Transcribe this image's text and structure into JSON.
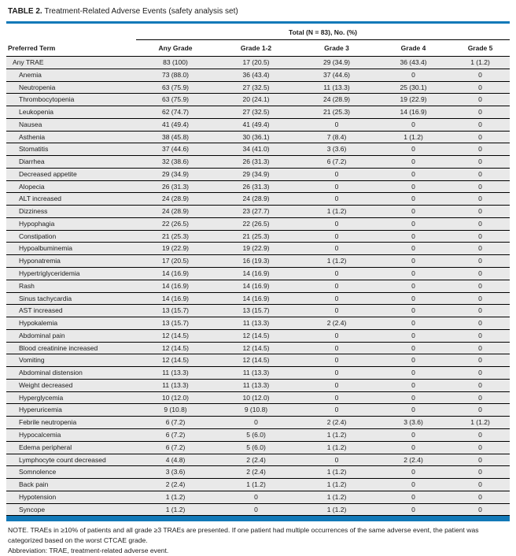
{
  "title": {
    "label": "TABLE 2.",
    "text": "Treatment-Related Adverse Events (safety analysis set)"
  },
  "table": {
    "spanner": "Total (N = 83), No. (%)",
    "columns": [
      "Preferred Term",
      "Any Grade",
      "Grade 1-2",
      "Grade 3",
      "Grade 4",
      "Grade 5"
    ],
    "rows": [
      {
        "term": "Any TRAE",
        "indent": false,
        "values": [
          "83 (100)",
          "17 (20.5)",
          "29 (34.9)",
          "36 (43.4)",
          "1 (1.2)"
        ]
      },
      {
        "term": "Anemia",
        "indent": true,
        "values": [
          "73 (88.0)",
          "36 (43.4)",
          "37 (44.6)",
          "0",
          "0"
        ]
      },
      {
        "term": "Neutropenia",
        "indent": true,
        "values": [
          "63 (75.9)",
          "27 (32.5)",
          "11 (13.3)",
          "25 (30.1)",
          "0"
        ]
      },
      {
        "term": "Thrombocytopenia",
        "indent": true,
        "values": [
          "63 (75.9)",
          "20 (24.1)",
          "24 (28.9)",
          "19 (22.9)",
          "0"
        ]
      },
      {
        "term": "Leukopenia",
        "indent": true,
        "values": [
          "62 (74.7)",
          "27 (32.5)",
          "21 (25.3)",
          "14 (16.9)",
          "0"
        ]
      },
      {
        "term": "Nausea",
        "indent": true,
        "values": [
          "41 (49.4)",
          "41 (49.4)",
          "0",
          "0",
          "0"
        ]
      },
      {
        "term": "Asthenia",
        "indent": true,
        "values": [
          "38 (45.8)",
          "30 (36.1)",
          "7 (8.4)",
          "1 (1.2)",
          "0"
        ]
      },
      {
        "term": "Stomatitis",
        "indent": true,
        "values": [
          "37 (44.6)",
          "34 (41.0)",
          "3 (3.6)",
          "0",
          "0"
        ]
      },
      {
        "term": "Diarrhea",
        "indent": true,
        "values": [
          "32 (38.6)",
          "26 (31.3)",
          "6 (7.2)",
          "0",
          "0"
        ]
      },
      {
        "term": "Decreased appetite",
        "indent": true,
        "values": [
          "29 (34.9)",
          "29 (34.9)",
          "0",
          "0",
          "0"
        ]
      },
      {
        "term": "Alopecia",
        "indent": true,
        "values": [
          "26 (31.3)",
          "26 (31.3)",
          "0",
          "0",
          "0"
        ]
      },
      {
        "term": "ALT increased",
        "indent": true,
        "values": [
          "24 (28.9)",
          "24 (28.9)",
          "0",
          "0",
          "0"
        ]
      },
      {
        "term": "Dizziness",
        "indent": true,
        "values": [
          "24 (28.9)",
          "23 (27.7)",
          "1 (1.2)",
          "0",
          "0"
        ]
      },
      {
        "term": "Hypophagia",
        "indent": true,
        "values": [
          "22 (26.5)",
          "22 (26.5)",
          "0",
          "0",
          "0"
        ]
      },
      {
        "term": "Constipation",
        "indent": true,
        "values": [
          "21 (25.3)",
          "21 (25.3)",
          "0",
          "0",
          "0"
        ]
      },
      {
        "term": "Hypoalbuminemia",
        "indent": true,
        "values": [
          "19 (22.9)",
          "19 (22.9)",
          "0",
          "0",
          "0"
        ]
      },
      {
        "term": "Hyponatremia",
        "indent": true,
        "values": [
          "17 (20.5)",
          "16 (19.3)",
          "1 (1.2)",
          "0",
          "0"
        ]
      },
      {
        "term": "Hypertriglyceridemia",
        "indent": true,
        "values": [
          "14 (16.9)",
          "14 (16.9)",
          "0",
          "0",
          "0"
        ]
      },
      {
        "term": "Rash",
        "indent": true,
        "values": [
          "14 (16.9)",
          "14 (16.9)",
          "0",
          "0",
          "0"
        ]
      },
      {
        "term": "Sinus tachycardia",
        "indent": true,
        "values": [
          "14 (16.9)",
          "14 (16.9)",
          "0",
          "0",
          "0"
        ]
      },
      {
        "term": "AST increased",
        "indent": true,
        "values": [
          "13 (15.7)",
          "13 (15.7)",
          "0",
          "0",
          "0"
        ]
      },
      {
        "term": "Hypokalemia",
        "indent": true,
        "values": [
          "13 (15.7)",
          "11 (13.3)",
          "2 (2.4)",
          "0",
          "0"
        ]
      },
      {
        "term": "Abdominal pain",
        "indent": true,
        "values": [
          "12 (14.5)",
          "12 (14.5)",
          "0",
          "0",
          "0"
        ]
      },
      {
        "term": "Blood creatinine increased",
        "indent": true,
        "values": [
          "12 (14.5)",
          "12 (14.5)",
          "0",
          "0",
          "0"
        ]
      },
      {
        "term": "Vomiting",
        "indent": true,
        "values": [
          "12 (14.5)",
          "12 (14.5)",
          "0",
          "0",
          "0"
        ]
      },
      {
        "term": "Abdominal distension",
        "indent": true,
        "values": [
          "11 (13.3)",
          "11 (13.3)",
          "0",
          "0",
          "0"
        ]
      },
      {
        "term": "Weight decreased",
        "indent": true,
        "values": [
          "11 (13.3)",
          "11 (13.3)",
          "0",
          "0",
          "0"
        ]
      },
      {
        "term": "Hyperglycemia",
        "indent": true,
        "values": [
          "10 (12.0)",
          "10 (12.0)",
          "0",
          "0",
          "0"
        ]
      },
      {
        "term": "Hyperuricemia",
        "indent": true,
        "values": [
          "9 (10.8)",
          "9 (10.8)",
          "0",
          "0",
          "0"
        ]
      },
      {
        "term": "Febrile neutropenia",
        "indent": true,
        "values": [
          "6 (7.2)",
          "0",
          "2 (2.4)",
          "3 (3.6)",
          "1 (1.2)"
        ]
      },
      {
        "term": "Hypocalcemia",
        "indent": true,
        "values": [
          "6 (7.2)",
          "5 (6.0)",
          "1 (1.2)",
          "0",
          "0"
        ]
      },
      {
        "term": "Edema peripheral",
        "indent": true,
        "values": [
          "6 (7.2)",
          "5 (6.0)",
          "1 (1.2)",
          "0",
          "0"
        ]
      },
      {
        "term": "Lymphocyte count decreased",
        "indent": true,
        "values": [
          "4 (4.8)",
          "2 (2.4)",
          "0",
          "2 (2.4)",
          "0"
        ]
      },
      {
        "term": "Somnolence",
        "indent": true,
        "values": [
          "3 (3.6)",
          "2 (2.4)",
          "1 (1.2)",
          "0",
          "0"
        ]
      },
      {
        "term": "Back pain",
        "indent": true,
        "values": [
          "2 (2.4)",
          "1 (1.2)",
          "1 (1.2)",
          "0",
          "0"
        ]
      },
      {
        "term": "Hypotension",
        "indent": true,
        "values": [
          "1 (1.2)",
          "0",
          "1 (1.2)",
          "0",
          "0"
        ]
      },
      {
        "term": "Syncope",
        "indent": true,
        "values": [
          "1 (1.2)",
          "0",
          "1 (1.2)",
          "0",
          "0"
        ]
      }
    ]
  },
  "footnotes": {
    "note": "NOTE. TRAEs in ≥10% of patients and all grade ≥3 TRAEs are presented. If one patient had multiple occurrences of the same adverse event, the patient was categorized based on the worst CTCAE grade.",
    "abbreviation": "Abbreviation: TRAE, treatment-related adverse event."
  },
  "colors": {
    "accent_blue": "#1279b8",
    "row_gray": "#e9e9e9"
  }
}
